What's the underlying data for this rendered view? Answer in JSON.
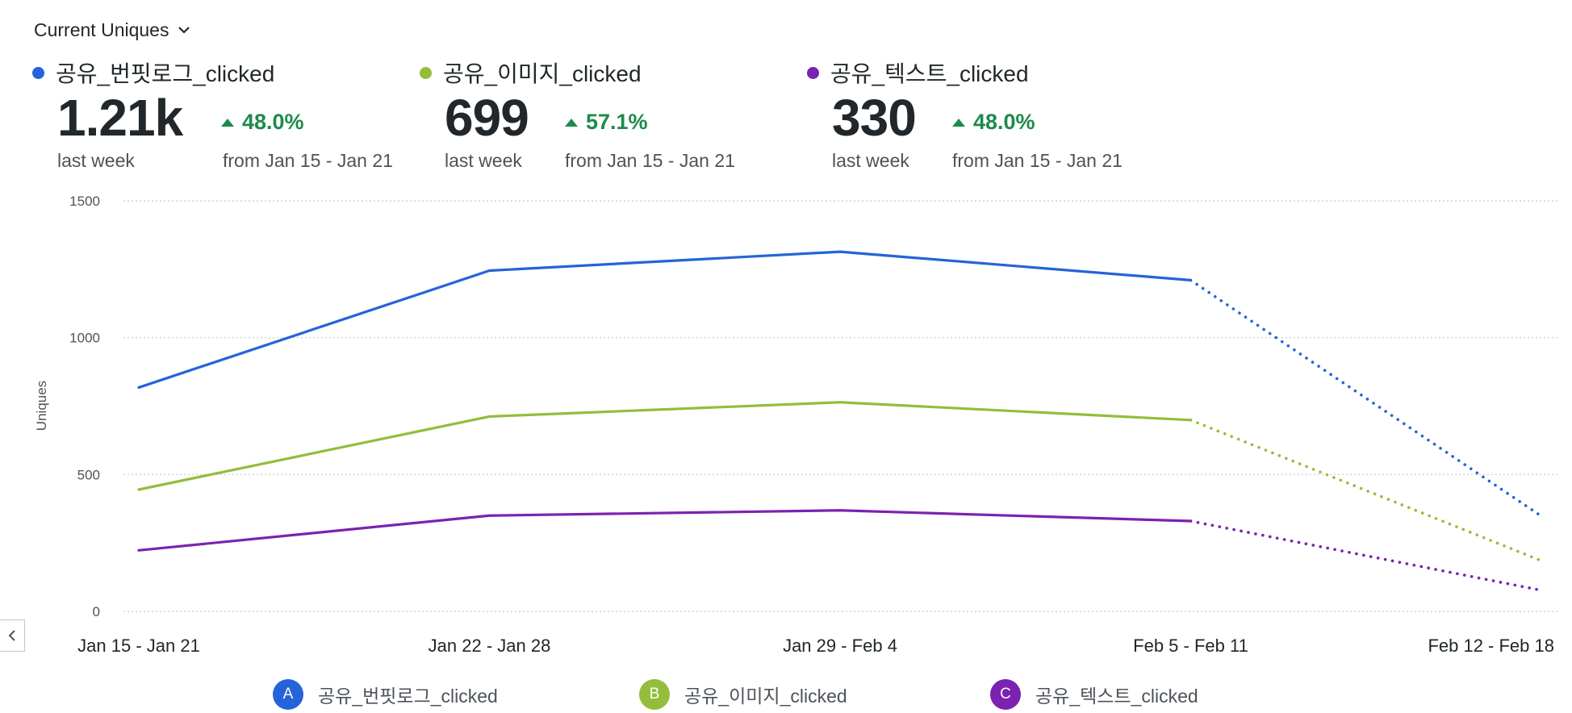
{
  "header": {
    "metric_label": "Current Uniques",
    "dropdown_icon": "chevron-down-icon"
  },
  "summary": [
    {
      "name": "공유_번핏로그_clicked",
      "color": "#2563d9",
      "value": "1.21k",
      "period": "last week",
      "delta": "48.0%",
      "from": "from Jan 15 - Jan 21"
    },
    {
      "name": "공유_이미지_clicked",
      "color": "#93bd3b",
      "value": "699",
      "period": "last week",
      "delta": "57.1%",
      "from": "from Jan 15 - Jan 21"
    },
    {
      "name": "공유_텍스트_clicked",
      "color": "#7b22b0",
      "value": "330",
      "period": "last week",
      "delta": "48.0%",
      "from": "from Jan 15 - Jan 21"
    }
  ],
  "chart_data": {
    "type": "line",
    "ylabel": "Uniques",
    "xlabel": "",
    "ylim": [
      0,
      1500
    ],
    "yticks": [
      0,
      500,
      1000,
      1500
    ],
    "grid": true,
    "categories": [
      "Jan 15 - Jan 21",
      "Jan 22 - Jan 28",
      "Jan 29 - Feb 4",
      "Feb 5 - Feb 11",
      "Feb 12 - Feb 18"
    ],
    "incomplete_from_index": 3,
    "series": [
      {
        "name": "공유_번핏로그_clicked",
        "badge": "A",
        "color": "#2563d9",
        "values": [
          818,
          1245,
          1314,
          1210,
          348
        ]
      },
      {
        "name": "공유_이미지_clicked",
        "badge": "B",
        "color": "#93bd3b",
        "values": [
          445,
          712,
          764,
          699,
          185
        ]
      },
      {
        "name": "공유_텍스트_clicked",
        "badge": "C",
        "color": "#7b22b0",
        "values": [
          223,
          350,
          369,
          330,
          77
        ]
      }
    ],
    "legend": "bottom"
  }
}
